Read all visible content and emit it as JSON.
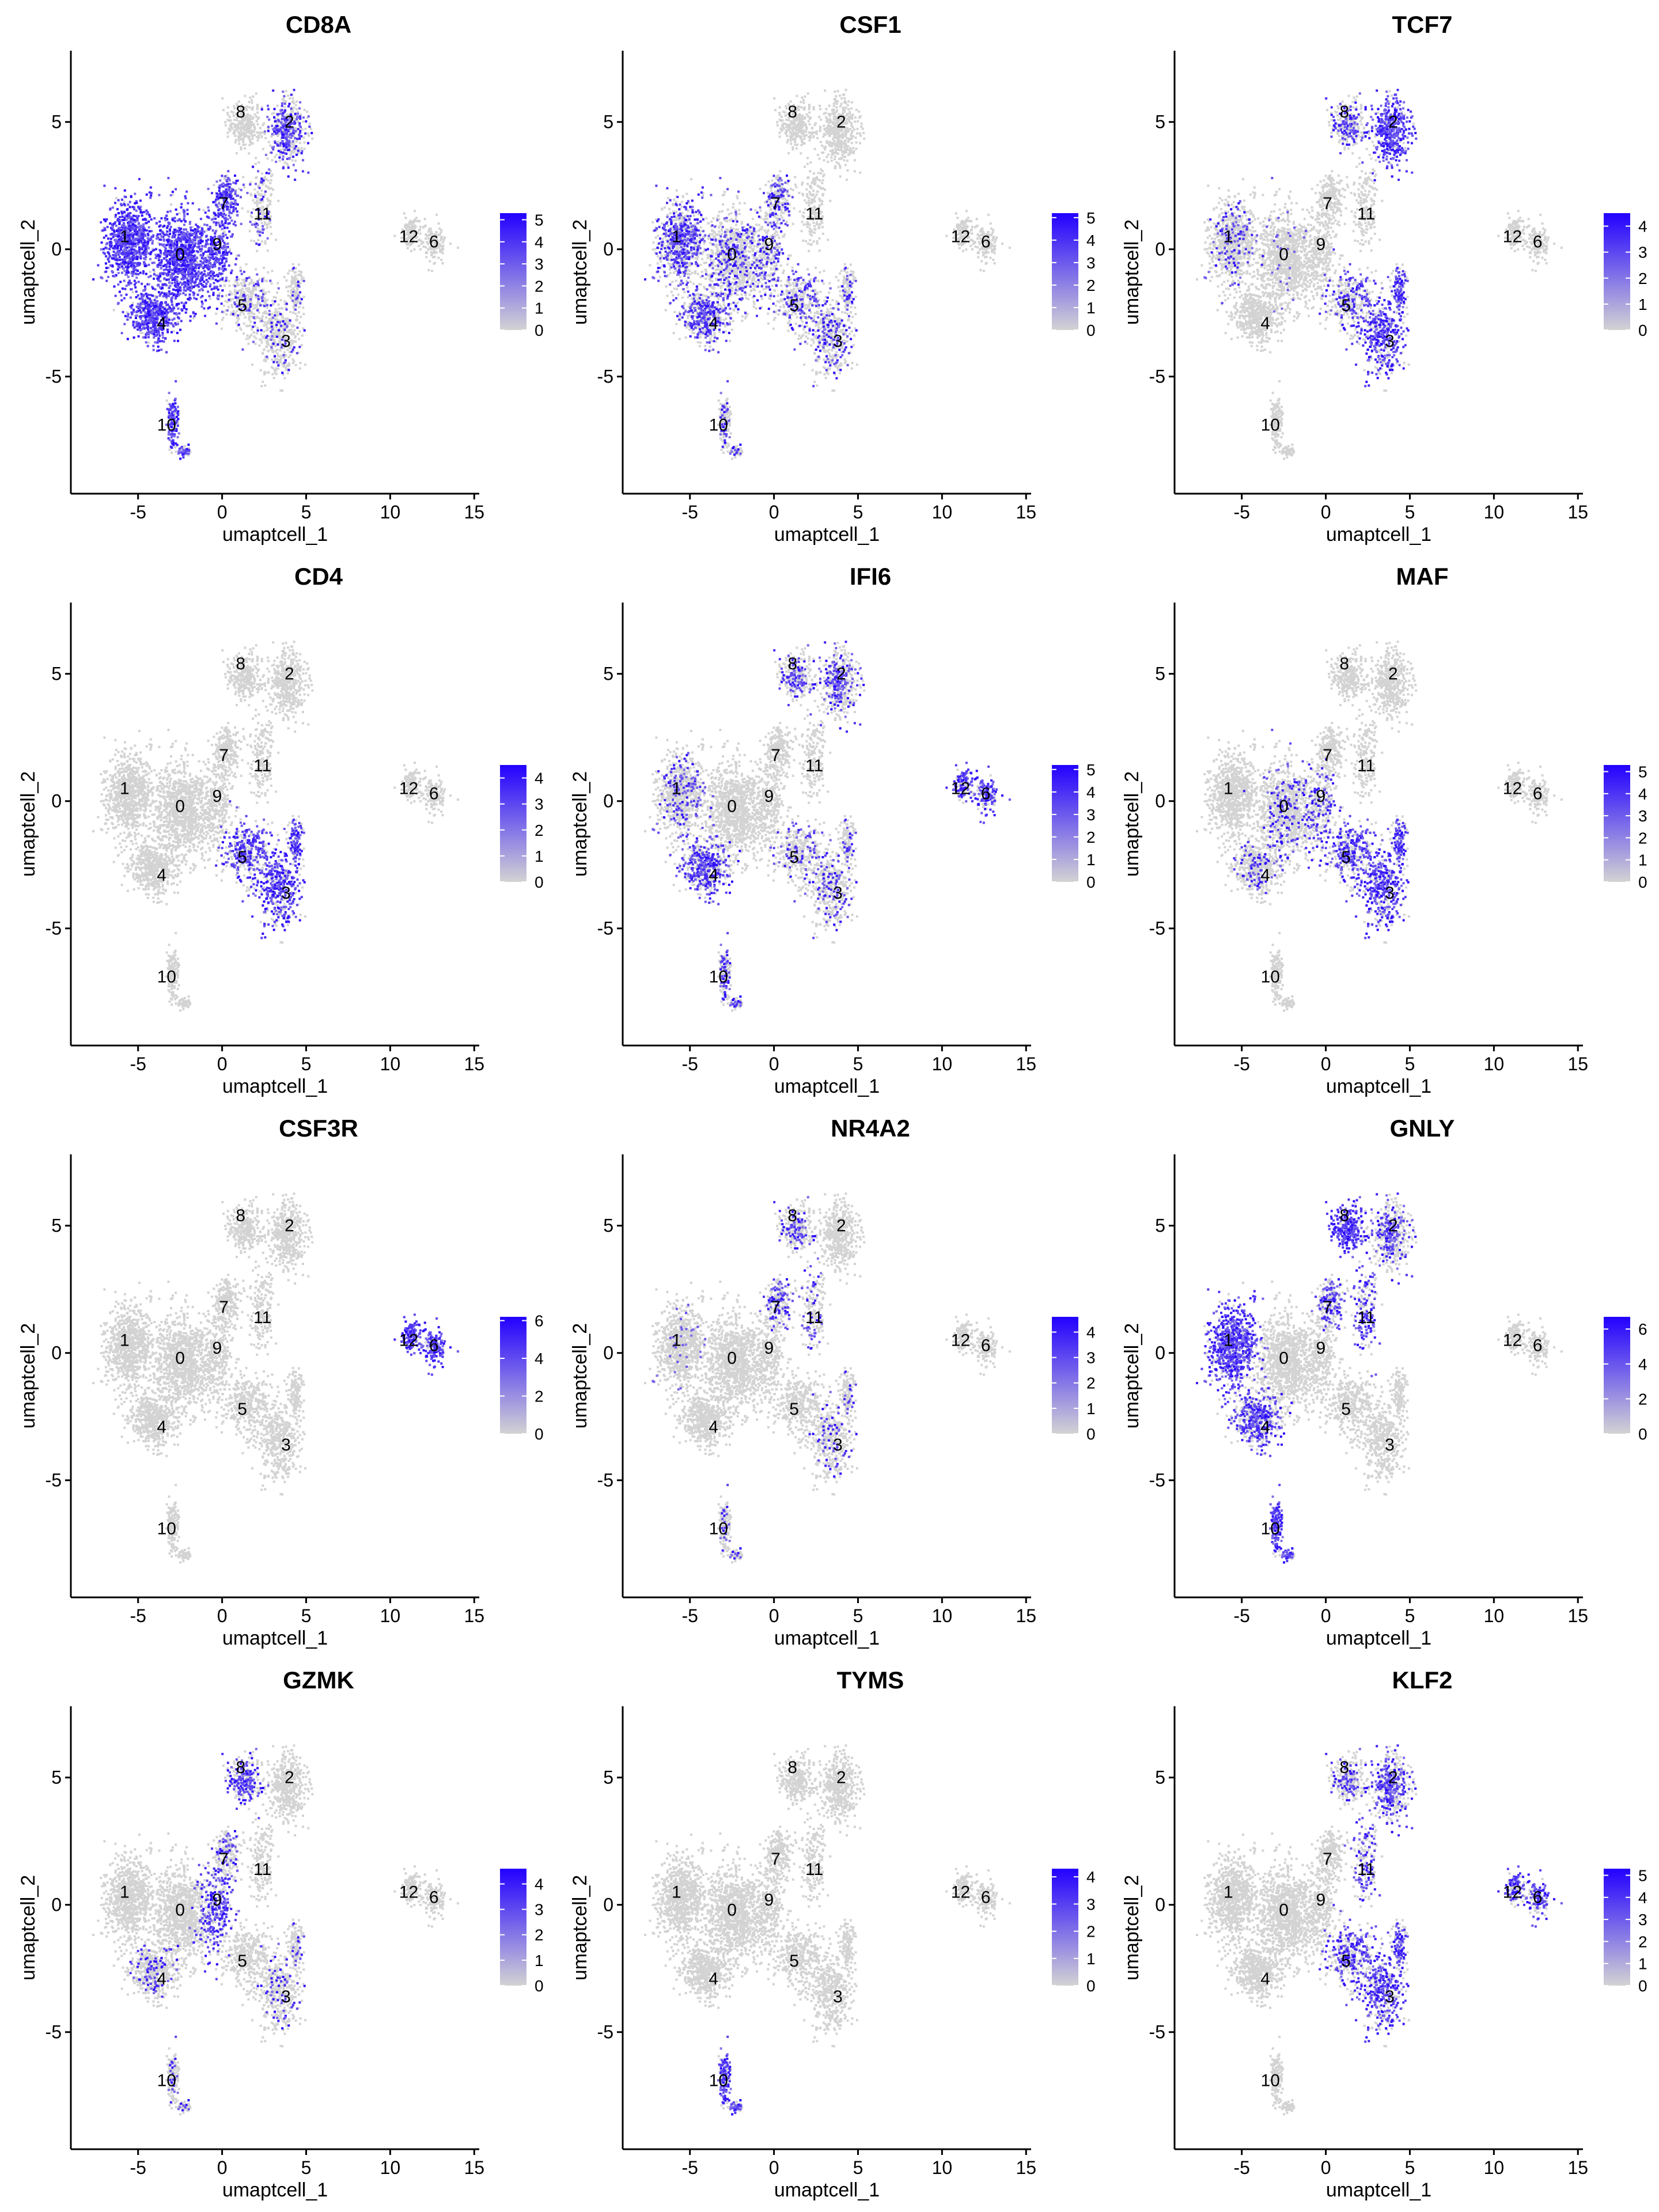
{
  "colors": {
    "low": "#d3d3d3",
    "high": "#2200ff",
    "axis": "#000000"
  },
  "chart_data": {
    "type": "scatter",
    "description_note": "",
    "xlabel": "umaptcell_1",
    "ylabel": "umaptcell_2",
    "xlim": [
      -9,
      15.3
    ],
    "ylim": [
      -9.6,
      7.8
    ],
    "xticks": [
      -5,
      0,
      5,
      10,
      15
    ],
    "yticks": [
      -5,
      0,
      5
    ],
    "xtick_labels": [
      "-5",
      "0",
      "5",
      "10",
      "15"
    ],
    "ytick_labels": [
      "-5",
      "0",
      "5"
    ],
    "cluster_labels": [
      {
        "label": "0",
        "x": -2.5,
        "y": -0.2
      },
      {
        "label": "1",
        "x": -5.8,
        "y": 0.5
      },
      {
        "label": "2",
        "x": 4.0,
        "y": 5.0
      },
      {
        "label": "3",
        "x": 3.8,
        "y": -3.6
      },
      {
        "label": "4",
        "x": -3.6,
        "y": -2.9
      },
      {
        "label": "5",
        "x": 1.2,
        "y": -2.2
      },
      {
        "label": "6",
        "x": 12.6,
        "y": 0.3
      },
      {
        "label": "7",
        "x": 0.1,
        "y": 1.8
      },
      {
        "label": "8",
        "x": 1.1,
        "y": 5.4
      },
      {
        "label": "9",
        "x": -0.3,
        "y": 0.2
      },
      {
        "label": "10",
        "x": -3.3,
        "y": -6.9
      },
      {
        "label": "11",
        "x": 2.4,
        "y": 1.4
      },
      {
        "label": "12",
        "x": 11.1,
        "y": 0.5
      }
    ],
    "panels": [
      {
        "title": "CD8A",
        "legend_max": 5.3,
        "legend_ticks": [
          0,
          1,
          2,
          3,
          4,
          5
        ],
        "legend_labels": [
          "0",
          "1",
          "2",
          "3",
          "4",
          "5"
        ]
      },
      {
        "title": "CSF1",
        "legend_max": 5.2,
        "legend_ticks": [
          0,
          1,
          2,
          3,
          4,
          5
        ],
        "legend_labels": [
          "0",
          "1",
          "2",
          "3",
          "4",
          "5"
        ]
      },
      {
        "title": "TCF7",
        "legend_max": 4.5,
        "legend_ticks": [
          0,
          1,
          2,
          3,
          4
        ],
        "legend_labels": [
          "0",
          "1",
          "2",
          "3",
          "4"
        ]
      },
      {
        "title": "CD4",
        "legend_max": 4.5,
        "legend_ticks": [
          0,
          1,
          2,
          3,
          4
        ],
        "legend_labels": [
          "0",
          "1",
          "2",
          "3",
          "4"
        ]
      },
      {
        "title": "IFI6",
        "legend_max": 5.2,
        "legend_ticks": [
          0,
          1,
          2,
          3,
          4,
          5
        ],
        "legend_labels": [
          "0",
          "1",
          "2",
          "3",
          "4",
          "5"
        ]
      },
      {
        "title": "MAF",
        "legend_max": 5.3,
        "legend_ticks": [
          0,
          1,
          2,
          3,
          4,
          5
        ],
        "legend_labels": [
          "0",
          "1",
          "2",
          "3",
          "4",
          "5"
        ]
      },
      {
        "title": "CSF3R",
        "legend_max": 6.2,
        "legend_ticks": [
          0,
          2,
          4,
          6
        ],
        "legend_labels": [
          "0",
          "2",
          "4",
          "6"
        ]
      },
      {
        "title": "NR4A2",
        "legend_max": 4.6,
        "legend_ticks": [
          0,
          1,
          2,
          3,
          4
        ],
        "legend_labels": [
          "0",
          "1",
          "2",
          "3",
          "4"
        ]
      },
      {
        "title": "GNLY",
        "legend_max": 6.7,
        "legend_ticks": [
          0,
          2,
          4,
          6
        ],
        "legend_labels": [
          "0",
          "2",
          "4",
          "6"
        ]
      },
      {
        "title": "GZMK",
        "legend_max": 4.6,
        "legend_ticks": [
          0,
          1,
          2,
          3,
          4
        ],
        "legend_labels": [
          "0",
          "1",
          "2",
          "3",
          "4"
        ]
      },
      {
        "title": "TYMS",
        "legend_max": 4.3,
        "legend_ticks": [
          0,
          1,
          2,
          3,
          4
        ],
        "legend_labels": [
          "0",
          "1",
          "2",
          "3",
          "4"
        ]
      },
      {
        "title": "KLF2",
        "legend_max": 5.3,
        "legend_ticks": [
          0,
          1,
          2,
          3,
          4,
          5
        ],
        "legend_labels": [
          "0",
          "1",
          "2",
          "3",
          "4",
          "5"
        ]
      }
    ]
  }
}
